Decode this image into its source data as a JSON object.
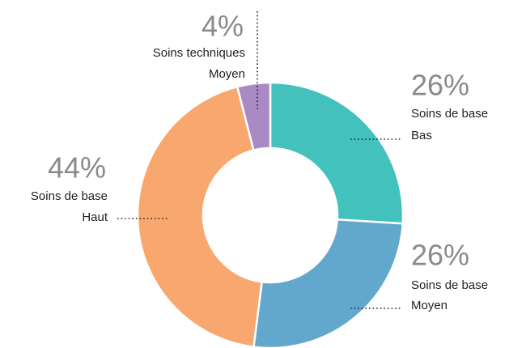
{
  "chart_data": {
    "type": "donut",
    "categories": [
      [
        "Soins de base",
        "Bas"
      ],
      [
        "Soins de base",
        "Moyen"
      ],
      [
        "Soins de base",
        "Haut"
      ],
      [
        "Soins techniques",
        "Moyen"
      ]
    ],
    "values": [
      26,
      26,
      44,
      4
    ],
    "value_labels": [
      "26%",
      "26%",
      "44%",
      "4%"
    ],
    "colors": [
      "#43c1bd",
      "#62a8cc",
      "#f8a86e",
      "#a98ac4"
    ]
  }
}
